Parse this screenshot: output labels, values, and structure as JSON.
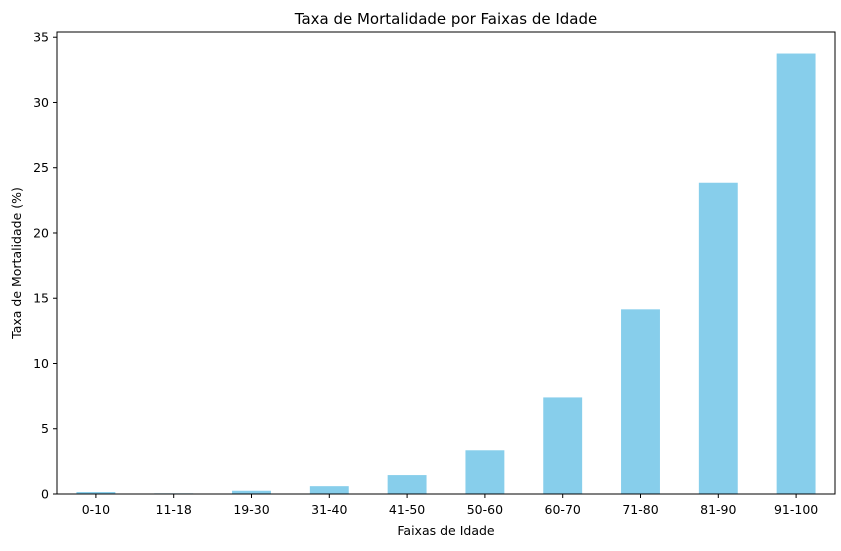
{
  "chart_data": {
    "type": "bar",
    "title": "Taxa de Mortalidade por Faixas de Idade",
    "xlabel": "Faixas de Idade",
    "ylabel": "Taxa de Mortalidade (%)",
    "categories": [
      "0-10",
      "11-18",
      "19-30",
      "31-40",
      "41-50",
      "50-60",
      "60-70",
      "71-80",
      "81-90",
      "91-100"
    ],
    "values": [
      0.15,
      0.05,
      0.25,
      0.6,
      1.45,
      3.35,
      7.4,
      14.15,
      23.85,
      33.75
    ],
    "ylim": [
      0,
      35.4
    ],
    "yticks": [
      0,
      5,
      10,
      15,
      20,
      25,
      30,
      35
    ],
    "bar_color": "#87ceeb",
    "grid": false,
    "legend": "none"
  }
}
